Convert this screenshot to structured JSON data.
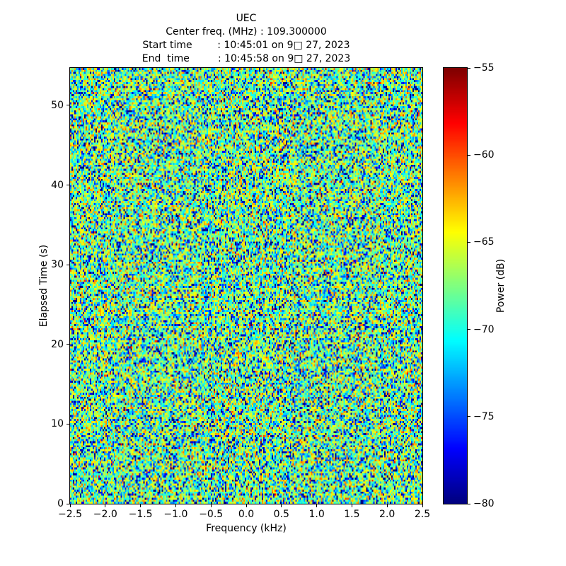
{
  "figure": {
    "background": "#ffffff",
    "title": "UEC",
    "info_lines": [
      "Center freq. (MHz) : 109.300000",
      "Start time        : 10:45:01 on 9□ 27, 2023",
      "End  time         : 10:45:58 on 9□ 27, 2023"
    ]
  },
  "chart_data": {
    "type": "heatmap",
    "title": "UEC",
    "center_freq_mhz": "109.300000",
    "start_time": "10:45:01 on 9□ 27, 2023",
    "end_time": "10:45:58 on 9□ 27, 2023",
    "xlabel": "Frequency (kHz)",
    "ylabel": "Elapsed Time (s)",
    "xlim": [
      -2.5,
      2.5
    ],
    "ylim": [
      0,
      54.7
    ],
    "grid": false,
    "xticks": {
      "values": [
        -2.5,
        -2.0,
        -1.5,
        -1.0,
        -0.5,
        0.0,
        0.5,
        1.0,
        1.5,
        2.0,
        2.5
      ],
      "labels": [
        "−2.5",
        "−2.0",
        "−1.5",
        "−1.0",
        "−0.5",
        "0.0",
        "0.5",
        "1.0",
        "1.5",
        "2.0",
        "2.5"
      ]
    },
    "yticks": {
      "values": [
        0,
        10,
        20,
        30,
        40,
        50
      ],
      "labels": [
        "0",
        "10",
        "20",
        "30",
        "40",
        "50"
      ]
    },
    "colorbar": {
      "label": "Power (dB)",
      "vmin": -80,
      "vmax": -55,
      "tick_values": [
        -55,
        -60,
        -65,
        -70,
        -75,
        -80
      ],
      "tick_labels": [
        "−55",
        "−60",
        "−65",
        "−70",
        "−75",
        "−80"
      ],
      "colormap": "jet",
      "position": "right"
    },
    "noise_field": {
      "description": "uniform random noise spectrogram, no visible signal features",
      "distribution": "exponential-power-speckle",
      "mean_power_db": -66.8,
      "rows": 216,
      "cols": 250,
      "seed": 20230927
    }
  }
}
